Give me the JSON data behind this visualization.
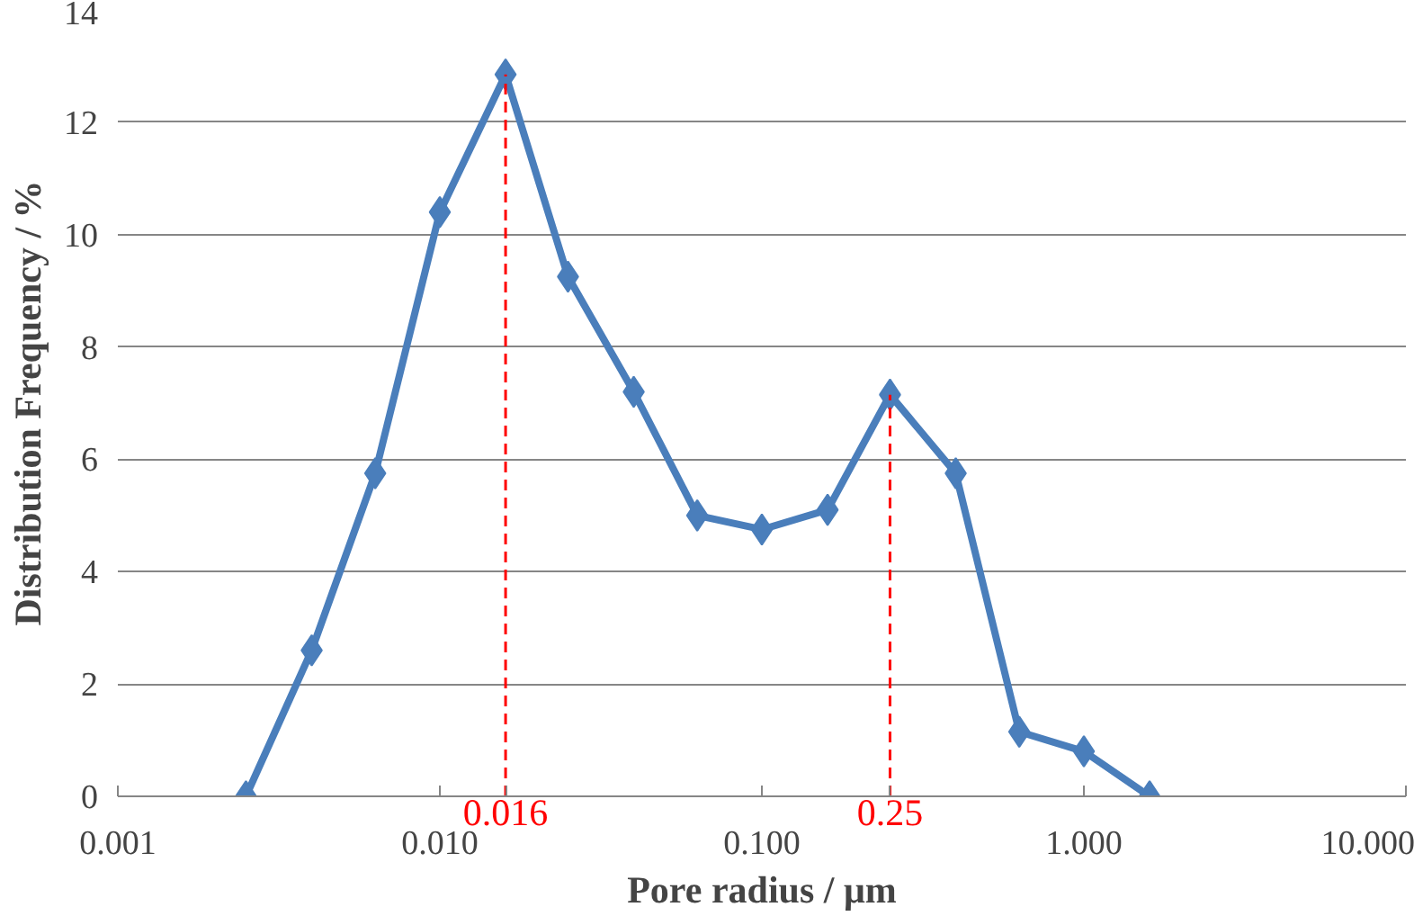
{
  "chart_data": {
    "type": "line",
    "xlabel": "Pore radius / μm",
    "ylabel": "Distribution Frequency / %",
    "log": "x",
    "x": [
      0.0025,
      0.004,
      0.0063,
      0.01,
      0.016,
      0.025,
      0.04,
      0.063,
      0.1,
      0.16,
      0.25,
      0.4,
      0.63,
      1.0,
      1.6
    ],
    "series": [
      {
        "color": "#4a7ebb",
        "values": [
          0,
          2.6,
          5.75,
          10.4,
          12.85,
          9.25,
          7.2,
          5.0,
          4.75,
          5.1,
          7.15,
          5.75,
          1.15,
          0.8,
          0
        ]
      }
    ],
    "xlim": [
      0.001,
      10
    ],
    "xticks": [
      {
        "value": 0.001,
        "label": "0.001"
      },
      {
        "value": 0.01,
        "label": "0.010"
      },
      {
        "value": 0.1,
        "label": "0.100"
      },
      {
        "value": 1,
        "label": "1.000"
      },
      {
        "value": 10,
        "label": "10.000"
      }
    ],
    "ylim": [
      0,
      14
    ],
    "yticks": [
      0,
      2,
      4,
      6,
      8,
      10,
      12,
      14
    ],
    "grid": "y",
    "marker": "diamond",
    "line_style": "solid",
    "ref_lines": [
      {
        "axis": "x",
        "value": 0.016,
        "label": "0.016",
        "color": "#ff0000",
        "line_style": "dashed"
      },
      {
        "axis": "x",
        "value": 0.25,
        "label": "0.25",
        "color": "#ff0000",
        "line_style": "dashed"
      }
    ]
  }
}
